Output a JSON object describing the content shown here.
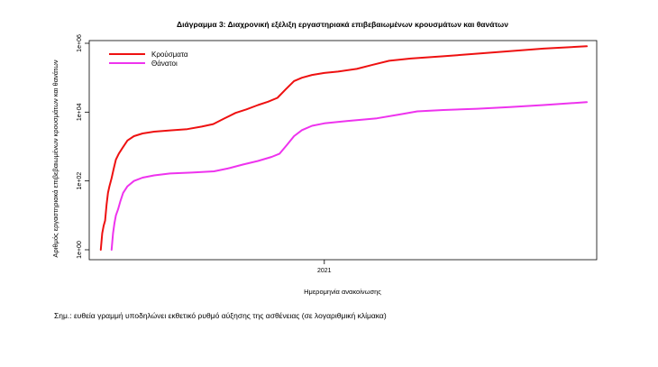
{
  "chart_data": {
    "type": "line",
    "title": "Διάγραμμα 3: Διαχρονική εξέλιξη εργαστηριακά επιβεβαιωμένων κρουσμάτων και θανάτων",
    "xlabel": "Ημερομηνία ανακοίνωσης",
    "ylabel": "Αριθμός εργαστηριακά επιβεβαιωμένων κρουσμάτων και θανάτων",
    "y_scale": "log10",
    "ylim": [
      1,
      1000000
    ],
    "yticks": [
      {
        "value": 1,
        "label": "1e+00"
      },
      {
        "value": 100,
        "label": "1e+02"
      },
      {
        "value": 10000,
        "label": "1e+04"
      },
      {
        "value": 1000000,
        "label": "1e+06"
      }
    ],
    "xlim": [
      "2020-02-20",
      "2022-01-05"
    ],
    "xticks": [
      {
        "value": "2021-01-01",
        "label": "2021"
      }
    ],
    "legend_position": "top-left",
    "grid": false,
    "series": [
      {
        "name": "Κρούσματα",
        "color": "#ee1111",
        "points": [
          [
            "2020-02-26",
            1
          ],
          [
            "2020-02-28",
            3
          ],
          [
            "2020-03-01",
            5
          ],
          [
            "2020-03-03",
            7
          ],
          [
            "2020-03-05",
            20
          ],
          [
            "2020-03-07",
            45
          ],
          [
            "2020-03-09",
            70
          ],
          [
            "2020-03-12",
            120
          ],
          [
            "2020-03-15",
            230
          ],
          [
            "2020-03-18",
            420
          ],
          [
            "2020-03-22",
            620
          ],
          [
            "2020-03-27",
            900
          ],
          [
            "2020-04-03",
            1500
          ],
          [
            "2020-04-12",
            2000
          ],
          [
            "2020-04-24",
            2400
          ],
          [
            "2020-05-10",
            2700
          ],
          [
            "2020-06-01",
            2950
          ],
          [
            "2020-06-25",
            3200
          ],
          [
            "2020-07-15",
            3800
          ],
          [
            "2020-07-31",
            4500
          ],
          [
            "2020-08-15",
            6500
          ],
          [
            "2020-08-31",
            9500
          ],
          [
            "2020-09-15",
            12000
          ],
          [
            "2020-10-01",
            16000
          ],
          [
            "2020-10-15",
            20000
          ],
          [
            "2020-10-28",
            26000
          ],
          [
            "2020-11-08",
            45000
          ],
          [
            "2020-11-20",
            80000
          ],
          [
            "2020-12-01",
            100000
          ],
          [
            "2020-12-15",
            120000
          ],
          [
            "2021-01-01",
            137000
          ],
          [
            "2021-01-20",
            150000
          ],
          [
            "2021-02-15",
            180000
          ],
          [
            "2021-03-10",
            240000
          ],
          [
            "2021-04-01",
            310000
          ],
          [
            "2021-05-01",
            360000
          ],
          [
            "2021-06-15",
            420000
          ],
          [
            "2021-08-01",
            500000
          ],
          [
            "2021-09-15",
            590000
          ],
          [
            "2021-11-01",
            700000
          ],
          [
            "2021-12-31",
            820000
          ]
        ]
      },
      {
        "name": "Θάνατοι",
        "color": "#ee33ee",
        "points": [
          [
            "2020-03-12",
            1
          ],
          [
            "2020-03-14",
            3
          ],
          [
            "2020-03-16",
            6
          ],
          [
            "2020-03-18",
            10
          ],
          [
            "2020-03-21",
            15
          ],
          [
            "2020-03-24",
            25
          ],
          [
            "2020-03-28",
            45
          ],
          [
            "2020-04-03",
            70
          ],
          [
            "2020-04-12",
            100
          ],
          [
            "2020-04-24",
            125
          ],
          [
            "2020-05-10",
            145
          ],
          [
            "2020-06-01",
            165
          ],
          [
            "2020-07-01",
            175
          ],
          [
            "2020-08-01",
            190
          ],
          [
            "2020-08-20",
            230
          ],
          [
            "2020-09-10",
            300
          ],
          [
            "2020-10-01",
            380
          ],
          [
            "2020-10-20",
            500
          ],
          [
            "2020-10-31",
            620
          ],
          [
            "2020-11-10",
            1100
          ],
          [
            "2020-11-20",
            2000
          ],
          [
            "2020-12-01",
            3000
          ],
          [
            "2020-12-15",
            4000
          ],
          [
            "2021-01-01",
            4700
          ],
          [
            "2021-02-01",
            5500
          ],
          [
            "2021-03-15",
            6600
          ],
          [
            "2021-04-15",
            8500
          ],
          [
            "2021-05-10",
            10500
          ],
          [
            "2021-06-15",
            11500
          ],
          [
            "2021-08-01",
            12500
          ],
          [
            "2021-09-15",
            14000
          ],
          [
            "2021-11-01",
            16000
          ],
          [
            "2021-12-31",
            19500
          ]
        ]
      }
    ]
  },
  "footnote": "Σημ.: ευθεία γραμμή υποδηλώνει εκθετικό ρυθμό αύξησης της ασθένειας (σε λογαριθμική κλίμακα)"
}
